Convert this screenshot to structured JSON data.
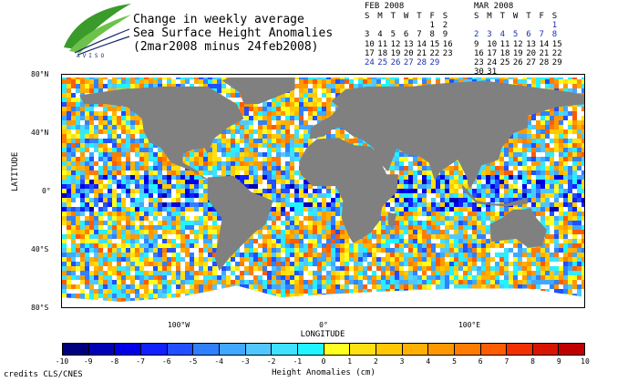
{
  "title": {
    "line1": "Change in weekly average",
    "line2": "Sea Surface Height Anomalies",
    "line3": "(2mar2008 minus 24feb2008)"
  },
  "logo": {
    "text": "AVISO"
  },
  "calendars": [
    {
      "month": "FEB 2008",
      "days": [
        "S",
        "M",
        "T",
        "W",
        "T",
        "F",
        "S"
      ],
      "weeks": [
        [
          "",
          "",
          "",
          "",
          "",
          "1",
          "2"
        ],
        [
          "3",
          "4",
          "5",
          "6",
          "7",
          "8",
          "9"
        ],
        [
          "10",
          "11",
          "12",
          "13",
          "14",
          "15",
          "16"
        ],
        [
          "17",
          "18",
          "19",
          "20",
          "21",
          "22",
          "23"
        ],
        [
          "24",
          "25",
          "26",
          "27",
          "28",
          "29",
          ""
        ]
      ],
      "highlight": [
        "24",
        "25",
        "26",
        "27",
        "28",
        "29"
      ]
    },
    {
      "month": "MAR 2008",
      "days": [
        "S",
        "M",
        "T",
        "W",
        "T",
        "F",
        "S"
      ],
      "weeks": [
        [
          "",
          "",
          "",
          "",
          "",
          "",
          "1"
        ],
        [
          "2",
          "3",
          "4",
          "5",
          "6",
          "7",
          "8"
        ],
        [
          "9",
          "10",
          "11",
          "12",
          "13",
          "14",
          "15"
        ],
        [
          "16",
          "17",
          "18",
          "19",
          "20",
          "21",
          "22"
        ],
        [
          "23",
          "24",
          "25",
          "26",
          "27",
          "28",
          "29"
        ],
        [
          "30",
          "31",
          "",
          "",
          "",
          "",
          ""
        ]
      ],
      "highlight": [
        "1",
        "2",
        "3",
        "4",
        "5",
        "6",
        "7",
        "8"
      ]
    }
  ],
  "map": {
    "lat_ticks": [
      "80°N",
      "40°N",
      "0°",
      "40°S",
      "80°S"
    ],
    "lon_ticks": [
      "100°W",
      "0°",
      "100°E"
    ],
    "lat_title": "LATITUDE",
    "lon_title": "LONGITUDE",
    "land_color": "#808080",
    "ice_color": "#ffffff"
  },
  "colorbar": {
    "ticks": [
      "-10",
      "-9",
      "-8",
      "-7",
      "-6",
      "-5",
      "-4",
      "-3",
      "-2",
      "-1",
      "0",
      "1",
      "2",
      "3",
      "4",
      "5",
      "6",
      "7",
      "8",
      "9",
      "10"
    ],
    "colors": [
      "#00007f",
      "#0000b4",
      "#0000e6",
      "#1020ff",
      "#2050ff",
      "#3080ff",
      "#40a8ff",
      "#50c8ff",
      "#40e0ff",
      "#20f4ff",
      "#ffff20",
      "#ffe010",
      "#ffc800",
      "#ffb000",
      "#ff9800",
      "#ff7c00",
      "#ff5c00",
      "#f03000",
      "#d81400",
      "#c00000"
    ],
    "title": "Height Anomalies (cm)"
  },
  "credits": "credits CLS/CNES"
}
